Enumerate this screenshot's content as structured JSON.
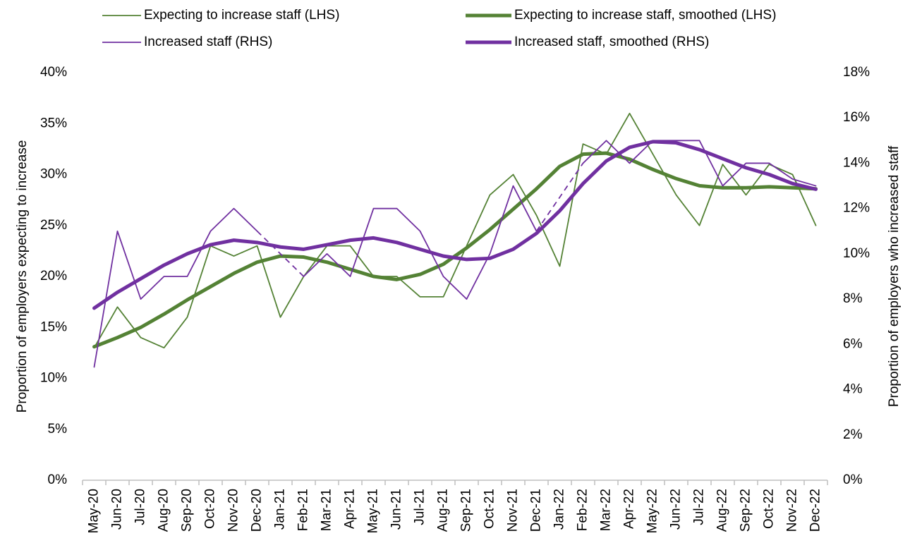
{
  "chart_data": {
    "type": "line",
    "y_label": "Proportion of employers expecting to increase",
    "y2_label": "Proportion of employers who increased staff",
    "categories": [
      "May-20",
      "Jun-20",
      "Jul-20",
      "Aug-20",
      "Sep-20",
      "Oct-20",
      "Nov-20",
      "Dec-20",
      "Jan-21",
      "Feb-21",
      "Mar-21",
      "Apr-21",
      "May-21",
      "Jun-21",
      "Jul-21",
      "Aug-21",
      "Sep-21",
      "Oct-21",
      "Nov-21",
      "Dec-21",
      "Jan-22",
      "Feb-22",
      "Mar-22",
      "Apr-22",
      "May-22",
      "Jun-22",
      "Jul-22",
      "Aug-22",
      "Sep-22",
      "Oct-22",
      "Nov-22",
      "Dec-22"
    ],
    "series": [
      {
        "name": "Expecting to increase staff (LHS)",
        "color": "#548235",
        "width": 1.8,
        "axis": "y",
        "values": [
          13,
          17,
          14,
          13,
          16,
          23,
          22,
          23,
          16,
          20,
          23,
          23,
          20,
          20,
          18,
          18,
          23,
          28,
          30,
          26,
          21,
          33,
          32,
          36,
          32,
          28,
          25,
          31,
          28,
          31,
          30,
          25
        ]
      },
      {
        "name": "Expecting to increase staff, smoothed (LHS)",
        "color": "#548235",
        "width": 5,
        "axis": "y",
        "values": [
          13.1,
          14,
          15,
          16.3,
          17.7,
          19,
          20.3,
          21.4,
          22,
          21.9,
          21.4,
          20.7,
          20,
          19.7,
          20.2,
          21.2,
          22.8,
          24.6,
          26.6,
          28.6,
          30.8,
          32,
          32.1,
          31.5,
          30.5,
          29.6,
          28.9,
          28.7,
          28.7,
          28.8,
          28.7,
          28.6
        ]
      },
      {
        "name": "Increased staff (RHS)",
        "color": "#7030a0",
        "width": 1.8,
        "axis": "y2",
        "gap_style": "dashed",
        "values": [
          5,
          11,
          8,
          9,
          9,
          11,
          12,
          11,
          null,
          9,
          10,
          9,
          12,
          12,
          11,
          9,
          8,
          10,
          13,
          11,
          null,
          14,
          15,
          14,
          15,
          15,
          15,
          13,
          14,
          14,
          13.3,
          13
        ]
      },
      {
        "name": "Increased staff, smoothed (RHS)",
        "color": "#7030a0",
        "width": 5,
        "axis": "y2",
        "values": [
          7.6,
          8.3,
          8.9,
          9.5,
          10,
          10.4,
          10.6,
          10.5,
          10.3,
          10.2,
          10.4,
          10.6,
          10.7,
          10.5,
          10.2,
          9.9,
          9.75,
          9.8,
          10.2,
          10.9,
          11.9,
          13.1,
          14.1,
          14.7,
          14.95,
          14.9,
          14.6,
          14.2,
          13.8,
          13.5,
          13.1,
          12.85
        ]
      }
    ],
    "ylim": [
      0,
      40
    ],
    "yticks": [
      {
        "value": 0,
        "label": "0%"
      },
      {
        "value": 5,
        "label": "5%"
      },
      {
        "value": 10,
        "label": "10%"
      },
      {
        "value": 15,
        "label": "15%"
      },
      {
        "value": 20,
        "label": "20%"
      },
      {
        "value": 25,
        "label": "25%"
      },
      {
        "value": 30,
        "label": "30%"
      },
      {
        "value": 35,
        "label": "35%"
      },
      {
        "value": 40,
        "label": "40%"
      }
    ],
    "y2lim": [
      0,
      18
    ],
    "y2ticks": [
      {
        "value": 0,
        "label": "0%"
      },
      {
        "value": 2,
        "label": "2%"
      },
      {
        "value": 4,
        "label": "4%"
      },
      {
        "value": 6,
        "label": "6%"
      },
      {
        "value": 8,
        "label": "8%"
      },
      {
        "value": 10,
        "label": "10%"
      },
      {
        "value": 12,
        "label": "12%"
      },
      {
        "value": 14,
        "label": "14%"
      },
      {
        "value": 16,
        "label": "16%"
      },
      {
        "value": 18,
        "label": "18%"
      }
    ],
    "legend": "top",
    "grid": false
  }
}
